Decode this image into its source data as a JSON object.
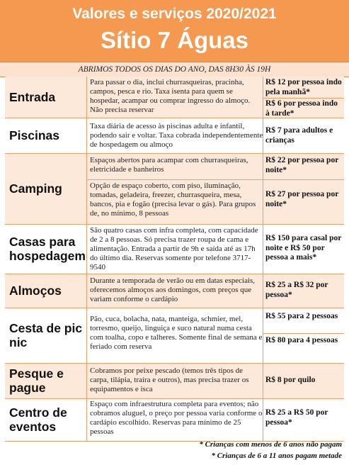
{
  "header": {
    "title_line1": "Valores e serviços 2020/2021",
    "title_line2": "Sítio 7 Águas"
  },
  "hours": "ABRIMOS TODOS OS DIAS DO ANO, DAS 8H30 ÀS 19H",
  "rows": [
    {
      "label": "Entrada",
      "desc": "Para passar o dia, inclui churrasqueiras, pracinha, campos, pesca e rio. Taxa isenta para quem se hospedar, acampar ou comprar ingresso do almoço. Não precisa reservar",
      "price1": "R$ 12 por pessoa indo pela manhã*",
      "price2": "R$ 6 por pessoa indo à tarde*"
    },
    {
      "label": "Piscinas",
      "desc": "Taxa diária de acesso às piscinas adulta e infantil, podendo sair e voltar. Taxa cobrada independentemente de hospedagem ou almoço",
      "price1": "R$ 7 para adultos e crianças"
    },
    {
      "label": "Camping",
      "desc1": "Espaços abertos para acampar com churrasqueiras, eletricidade e banheiros",
      "price1": "R$ 22 por pessoa por noite*",
      "desc2": "Opção de espaço coberto, com piso, iluminação, tomadas, geladeira, freezer, churrasqueira, mesa, bancos, pia e fogão (precisa levar o gás). Para grupos de, no mínimo, 8 pessoas",
      "price2": "R$ 27 por pessoa por noite*"
    },
    {
      "label": "Casas para hospedagem",
      "desc": "São quatro casas com infra completa, com capacidade de 2 a 8 pessoas. Só precisa trazer roupa de cama e alimentação. Entrada a partir de 9h e saída até as 17h do último dia. Reservas somente por telefone 3717-9540",
      "price1": "R$ 150 para casal por noite e R$ 50 por pessoa a mais*"
    },
    {
      "label": "Almoços",
      "desc": "Durante a temporada de verão ou em datas especiais, oferecemos almoços aos domingos, com preços que variam conforme o cardápio",
      "price1": "R$ 25 a R$ 32 por pessoa*"
    },
    {
      "label": "Cesta de pic nic",
      "desc": "Pão, cuca, bolacha, nata, manteiga, schmier, mel, torresmo, queijo, linguiça e suco natural numa cesta com toalha, copo e talheres. Somente final de semana e feriado com reserva",
      "price1": "R$ 55 para 2 pessoas",
      "price2": "R$ 80 para 4 pessoas"
    },
    {
      "label": "Pesque e pague",
      "desc": "Cobramos por peixe pescado (temos três tipos de carpa, tilápia, traíra e outros), mas precisa trazer os equipamentos e isca",
      "price1": "R$ 8 por quilo"
    },
    {
      "label": "Centro de eventos",
      "desc": "Espaço com infraestrutura completa para eventos; não cobramos aluguel, o preço por pessoa varia conforme o cardápio escolhido. Reservas para mínimo de 25 pessoas",
      "price1": "R$ 25 a R$ 50 por pessoa*"
    }
  ],
  "footnotes": [
    "* Crianças com menos de 6 anos não pagam",
    "* Crianças de 6 a 11 anos pagam metade"
  ]
}
